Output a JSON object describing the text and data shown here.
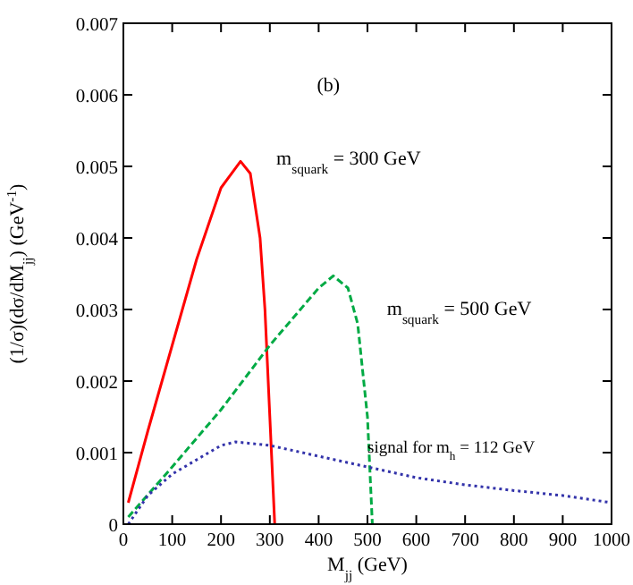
{
  "chart_data": {
    "type": "line",
    "xlabel": "M$_{jj}$ (GeV)",
    "ylabel": "(1/σ)(dσ/dM$_{jj}$) (GeV$^{-1}$)",
    "xlim": [
      0,
      1000
    ],
    "xticks": [
      0,
      100,
      200,
      300,
      400,
      500,
      600,
      700,
      800,
      900,
      1000
    ],
    "ylim": [
      0,
      0.007
    ],
    "yticks": [
      0,
      0.001,
      0.002,
      0.003,
      0.004,
      0.005,
      0.006,
      0.007
    ],
    "grid": false,
    "series": [
      {
        "name": "m$_{squark}$ = 300 GeV",
        "color": "#ff0000",
        "line_style": "solid",
        "x": [
          10,
          50,
          100,
          150,
          200,
          240,
          260,
          280,
          290,
          300,
          310
        ],
        "values": [
          0.0003,
          0.0013,
          0.0025,
          0.0037,
          0.0047,
          0.00507,
          0.0049,
          0.004,
          0.003,
          0.0015,
          0
        ]
      },
      {
        "name": "m$_{squark}$ = 500 GeV",
        "color": "#00aa44",
        "line_style": "dashed",
        "x": [
          10,
          100,
          200,
          300,
          400,
          430,
          460,
          480,
          500,
          510
        ],
        "values": [
          0.0001,
          0.0008,
          0.0016,
          0.0025,
          0.0033,
          0.00347,
          0.0033,
          0.0028,
          0.0015,
          0
        ]
      },
      {
        "name": "signal for m$_{h}$ = 112 GeV",
        "color": "#3333aa",
        "line_style": "dotted",
        "x": [
          10,
          50,
          100,
          150,
          200,
          230,
          300,
          400,
          500,
          600,
          700,
          800,
          900,
          1000
        ],
        "values": [
          0,
          0.0004,
          0.0007,
          0.0009,
          0.0011,
          0.00115,
          0.0011,
          0.00095,
          0.0008,
          0.00065,
          0.00055,
          0.00047,
          0.0004,
          0.0003
        ]
      }
    ],
    "annotations": [
      "(b)"
    ]
  }
}
